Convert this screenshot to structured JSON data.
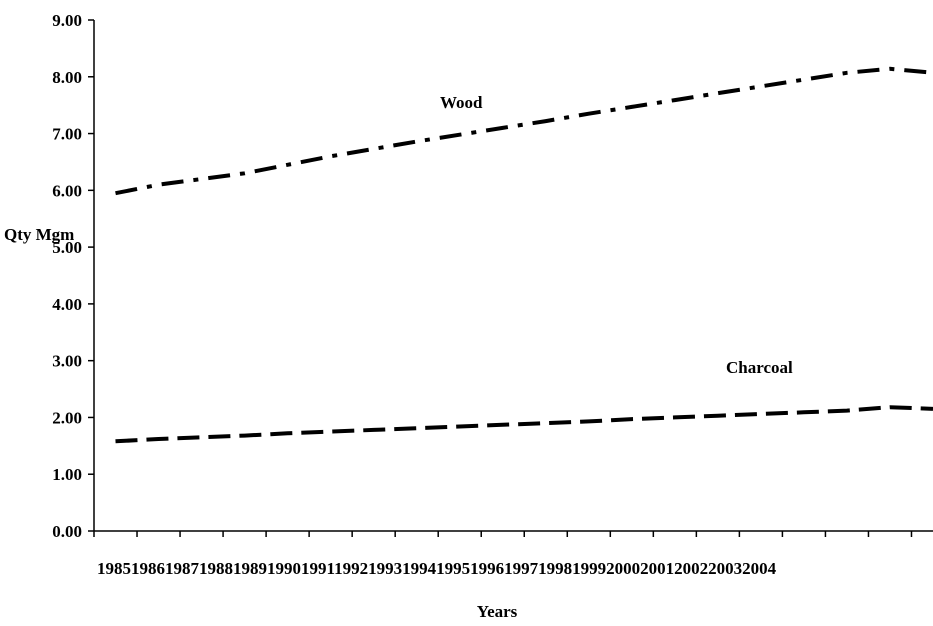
{
  "chart_data": {
    "type": "line",
    "title": "",
    "xlabel": "Years",
    "ylabel": "Qty Mgm",
    "ylim": [
      0,
      9
    ],
    "yticks": [
      "0.00",
      "1.00",
      "2.00",
      "3.00",
      "4.00",
      "5.00",
      "6.00",
      "7.00",
      "8.00",
      "9.00"
    ],
    "categories": [
      "1985",
      "1986",
      "1987",
      "1988",
      "1989",
      "1990",
      "1991",
      "1992",
      "1993",
      "1994",
      "1995",
      "1996",
      "1997",
      "1998",
      "1999",
      "2000",
      "2001",
      "2002",
      "2003",
      "2004"
    ],
    "grid": false,
    "legend": "none",
    "series": [
      {
        "name": "Wood",
        "style": "dash-dot",
        "values": [
          5.95,
          6.1,
          6.2,
          6.3,
          6.45,
          6.6,
          6.73,
          6.86,
          6.98,
          7.1,
          7.22,
          7.35,
          7.47,
          7.59,
          7.71,
          7.83,
          7.95,
          8.07,
          8.14,
          8.07
        ]
      },
      {
        "name": "Charcoal",
        "style": "dash",
        "values": [
          1.58,
          1.62,
          1.65,
          1.68,
          1.72,
          1.75,
          1.78,
          1.81,
          1.84,
          1.87,
          1.9,
          1.93,
          1.97,
          2.0,
          2.03,
          2.06,
          2.09,
          2.12,
          2.18,
          2.15
        ]
      }
    ],
    "colors": {
      "line": "#000000",
      "axis": "#000000",
      "background": "#ffffff"
    }
  }
}
